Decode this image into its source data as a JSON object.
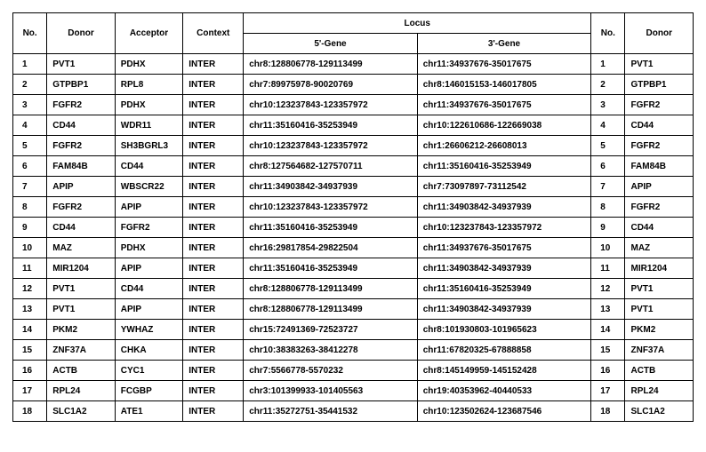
{
  "type": "table",
  "background_color": "#ffffff",
  "border_color": "#000000",
  "text_color": "#000000",
  "font_family": "Arial",
  "font_size_pt": 8,
  "header": {
    "no": "No.",
    "donor": "Donor",
    "acceptor": "Acceptor",
    "context": "Context",
    "locus": "Locus",
    "gene5": "5'-Gene",
    "gene3": "3'-Gene",
    "no2": "No.",
    "donor2": "Donor"
  },
  "rows": [
    {
      "no": "1",
      "donor": "PVT1",
      "acceptor": "PDHX",
      "context": "INTER",
      "g5": "chr8:128806778-129113499",
      "g3": "chr11:34937676-35017675",
      "no2": "1",
      "donor2": "PVT1"
    },
    {
      "no": "2",
      "donor": "GTPBP1",
      "acceptor": "RPL8",
      "context": "INTER",
      "g5": "chr7:89975978-90020769",
      "g3": "chr8:146015153-146017805",
      "no2": "2",
      "donor2": "GTPBP1"
    },
    {
      "no": "3",
      "donor": "FGFR2",
      "acceptor": "PDHX",
      "context": "INTER",
      "g5": "chr10:123237843-123357972",
      "g3": "chr11:34937676-35017675",
      "no2": "3",
      "donor2": "FGFR2"
    },
    {
      "no": "4",
      "donor": "CD44",
      "acceptor": "WDR11",
      "context": "INTER",
      "g5": "chr11:35160416-35253949",
      "g3": "chr10:122610686-122669038",
      "no2": "4",
      "donor2": "CD44"
    },
    {
      "no": "5",
      "donor": "FGFR2",
      "acceptor": "SH3BGRL3",
      "context": "INTER",
      "g5": "chr10:123237843-123357972",
      "g3": "chr1:26606212-26608013",
      "no2": "5",
      "donor2": "FGFR2"
    },
    {
      "no": "6",
      "donor": "FAM84B",
      "acceptor": "CD44",
      "context": "INTER",
      "g5": "chr8:127564682-127570711",
      "g3": "chr11:35160416-35253949",
      "no2": "6",
      "donor2": "FAM84B"
    },
    {
      "no": "7",
      "donor": "APIP",
      "acceptor": "WBSCR22",
      "context": "INTER",
      "g5": "chr11:34903842-34937939",
      "g3": "chr7:73097897-73112542",
      "no2": "7",
      "donor2": "APIP"
    },
    {
      "no": "8",
      "donor": "FGFR2",
      "acceptor": "APIP",
      "context": "INTER",
      "g5": "chr10:123237843-123357972",
      "g3": "chr11:34903842-34937939",
      "no2": "8",
      "donor2": "FGFR2"
    },
    {
      "no": "9",
      "donor": "CD44",
      "acceptor": "FGFR2",
      "context": "INTER",
      "g5": "chr11:35160416-35253949",
      "g3": "chr10:123237843-123357972",
      "no2": "9",
      "donor2": "CD44"
    },
    {
      "no": "10",
      "donor": "MAZ",
      "acceptor": "PDHX",
      "context": "INTER",
      "g5": "chr16:29817854-29822504",
      "g3": "chr11:34937676-35017675",
      "no2": "10",
      "donor2": "MAZ"
    },
    {
      "no": "11",
      "donor": "MIR1204",
      "acceptor": "APIP",
      "context": "INTER",
      "g5": "chr11:35160416-35253949",
      "g3": "chr11:34903842-34937939",
      "no2": "11",
      "donor2": "MIR1204"
    },
    {
      "no": "12",
      "donor": "PVT1",
      "acceptor": "CD44",
      "context": "INTER",
      "g5": "chr8:128806778-129113499",
      "g3": "chr11:35160416-35253949",
      "no2": "12",
      "donor2": "PVT1"
    },
    {
      "no": "13",
      "donor": "PVT1",
      "acceptor": "APIP",
      "context": "INTER",
      "g5": "chr8:128806778-129113499",
      "g3": "chr11:34903842-34937939",
      "no2": "13",
      "donor2": "PVT1"
    },
    {
      "no": "14",
      "donor": "PKM2",
      "acceptor": "YWHAZ",
      "context": "INTER",
      "g5": "chr15:72491369-72523727",
      "g3": "chr8:101930803-101965623",
      "no2": "14",
      "donor2": "PKM2"
    },
    {
      "no": "15",
      "donor": "ZNF37A",
      "acceptor": "CHKA",
      "context": "INTER",
      "g5": "chr10:38383263-38412278",
      "g3": "chr11:67820325-67888858",
      "no2": "15",
      "donor2": "ZNF37A"
    },
    {
      "no": "16",
      "donor": "ACTB",
      "acceptor": "CYC1",
      "context": "INTER",
      "g5": "chr7:5566778-5570232",
      "g3": "chr8:145149959-145152428",
      "no2": "16",
      "donor2": "ACTB"
    },
    {
      "no": "17",
      "donor": "RPL24",
      "acceptor": "FCGBP",
      "context": "INTER",
      "g5": "chr3:101399933-101405563",
      "g3": "chr19:40353962-40440533",
      "no2": "17",
      "donor2": "RPL24"
    },
    {
      "no": "18",
      "donor": "SLC1A2",
      "acceptor": "ATE1",
      "context": "INTER",
      "g5": "chr11:35272751-35441532",
      "g3": "chr10:123502624-123687546",
      "no2": "18",
      "donor2": "SLC1A2"
    }
  ]
}
